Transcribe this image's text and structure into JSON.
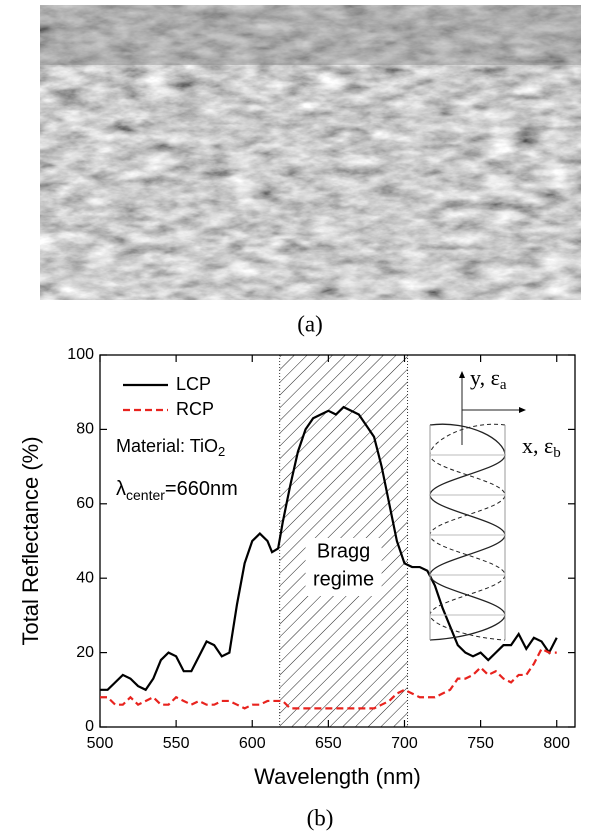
{
  "captions": [
    "(a)",
    "(b)"
  ],
  "chart_data": {
    "type": "line",
    "xlabel": "Wavelength (nm)",
    "ylabel": "Total Reflectance (%)",
    "xlim": [
      500,
      812
    ],
    "ylim": [
      0,
      100
    ],
    "xticks": [
      500,
      550,
      600,
      650,
      700,
      750,
      800
    ],
    "yticks": [
      0,
      20,
      40,
      60,
      80,
      100
    ],
    "legend": "upper left",
    "series": [
      {
        "name": "LCP",
        "color": "#000000",
        "dash": "solid",
        "x": [
          500,
          505,
          510,
          515,
          520,
          525,
          530,
          535,
          540,
          545,
          550,
          555,
          560,
          565,
          570,
          575,
          580,
          585,
          590,
          595,
          600,
          605,
          610,
          613,
          617,
          620,
          625,
          630,
          635,
          640,
          645,
          650,
          655,
          660,
          665,
          670,
          675,
          680,
          685,
          690,
          695,
          700,
          705,
          710,
          715,
          720,
          725,
          730,
          735,
          740,
          745,
          750,
          755,
          760,
          765,
          770,
          775,
          780,
          785,
          790,
          795,
          800
        ],
        "values": [
          10,
          10,
          12,
          14,
          13,
          11,
          10,
          13,
          18,
          20,
          19,
          15,
          15,
          19,
          23,
          22,
          19,
          20,
          33,
          44,
          50,
          52,
          50,
          47,
          48,
          55,
          65,
          74,
          80,
          83,
          84,
          85,
          84,
          86,
          85,
          84,
          81,
          78,
          70,
          60,
          50,
          44,
          43,
          43,
          42,
          38,
          32,
          27,
          22,
          20,
          19,
          20,
          18,
          20,
          22,
          22,
          25,
          21,
          24,
          23,
          20,
          24
        ]
      },
      {
        "name": "RCP",
        "color": "#e8231e",
        "dash": "dashed",
        "x": [
          500,
          505,
          510,
          515,
          520,
          525,
          530,
          535,
          540,
          545,
          550,
          555,
          560,
          565,
          570,
          575,
          580,
          585,
          590,
          595,
          600,
          605,
          610,
          615,
          620,
          625,
          630,
          640,
          650,
          660,
          670,
          680,
          685,
          690,
          695,
          700,
          705,
          710,
          715,
          720,
          725,
          730,
          735,
          740,
          745,
          750,
          755,
          760,
          765,
          770,
          775,
          780,
          785,
          790,
          795,
          800
        ],
        "values": [
          8,
          8,
          6,
          6,
          8,
          6,
          7,
          8,
          6,
          6,
          8,
          7,
          6,
          7,
          6,
          6,
          7,
          7,
          6,
          5,
          6,
          6,
          7,
          7,
          7,
          5,
          5,
          5,
          5,
          5,
          5,
          5,
          6,
          7,
          9,
          10,
          9,
          8,
          8,
          8,
          9,
          10,
          13,
          13,
          14,
          16,
          14,
          15,
          13,
          12,
          14,
          14,
          17,
          21,
          20,
          20
        ]
      }
    ],
    "shaded_region": {
      "x": [
        618,
        702
      ],
      "label": [
        "Bragg",
        "regime"
      ]
    },
    "annotations": {
      "material": [
        "Material: TiO",
        "2"
      ],
      "lambda": [
        "λ",
        "center",
        "=660nm"
      ],
      "inset_y": [
        "y, ε",
        "a"
      ],
      "inset_x": [
        "x, ε",
        "b"
      ]
    }
  }
}
